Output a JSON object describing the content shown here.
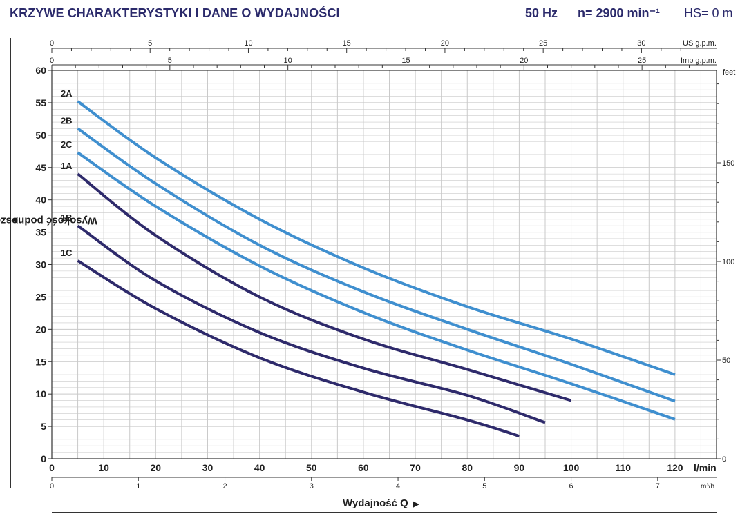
{
  "header": {
    "title": "KRZYWE CHARAKTERYSTYKI I DANE O WYDAJNOŚCI",
    "frequency": "50 Hz",
    "speed": "n= 2900 min⁻¹",
    "suction_height": "HS= 0 m"
  },
  "colors": {
    "light_curves": "#3f8fcf",
    "dark_curves": "#2e2a6b",
    "grid": "#c9c9c9",
    "title": "#2b2a6b"
  },
  "chart_data": {
    "type": "line",
    "xlabel": "Wydajność Q",
    "ylabel": "Wysokość podnoszenia H (metry)",
    "xlim": [
      0,
      128
    ],
    "ylim": [
      0,
      60
    ],
    "x_unit": "l/min",
    "x_ticks": [
      0,
      10,
      20,
      30,
      40,
      50,
      60,
      70,
      80,
      90,
      100,
      110,
      120
    ],
    "y_ticks": [
      0,
      5,
      10,
      15,
      20,
      25,
      30,
      35,
      40,
      45,
      50,
      55,
      60
    ],
    "grid": true,
    "secondary_axes": {
      "us_gpm": {
        "label": "US g.p.m.",
        "ticks": [
          0,
          5,
          10,
          15,
          20,
          25,
          30
        ]
      },
      "imp_gpm": {
        "label": "Imp g.p.m.",
        "ticks": [
          0,
          5,
          10,
          15,
          20,
          25
        ]
      },
      "m3h": {
        "label": "m³/h",
        "ticks": [
          0,
          1,
          2,
          3,
          4,
          5,
          6,
          7
        ]
      },
      "feet": {
        "label": "feet",
        "ticks": [
          0,
          50,
          100,
          150
        ]
      }
    },
    "series": [
      {
        "name": "2A",
        "color": "#3f8fcf",
        "x": [
          5,
          20,
          40,
          60,
          80,
          100,
          120
        ],
        "y": [
          55.2,
          46.5,
          37.0,
          29.5,
          23.5,
          18.5,
          13.0
        ]
      },
      {
        "name": "2B",
        "color": "#3f8fcf",
        "x": [
          5,
          20,
          40,
          60,
          80,
          100,
          120
        ],
        "y": [
          51.0,
          42.5,
          33.0,
          25.8,
          20.0,
          14.6,
          8.9
        ]
      },
      {
        "name": "2C",
        "color": "#3f8fcf",
        "x": [
          5,
          20,
          40,
          60,
          80,
          100,
          120
        ],
        "y": [
          47.3,
          39.0,
          29.8,
          22.6,
          16.8,
          11.6,
          6.1
        ]
      },
      {
        "name": "1A",
        "color": "#2e2a6b",
        "x": [
          5,
          20,
          40,
          60,
          80,
          100
        ],
        "y": [
          44.0,
          34.5,
          25.0,
          18.5,
          13.8,
          9.0
        ]
      },
      {
        "name": "1B",
        "color": "#2e2a6b",
        "x": [
          5,
          20,
          40,
          60,
          80,
          95
        ],
        "y": [
          36.0,
          27.5,
          19.5,
          14.0,
          9.8,
          5.6
        ]
      },
      {
        "name": "1C",
        "color": "#2e2a6b",
        "x": [
          5,
          20,
          40,
          60,
          80,
          90
        ],
        "y": [
          30.6,
          23.2,
          15.6,
          10.3,
          6.0,
          3.5
        ]
      }
    ]
  }
}
